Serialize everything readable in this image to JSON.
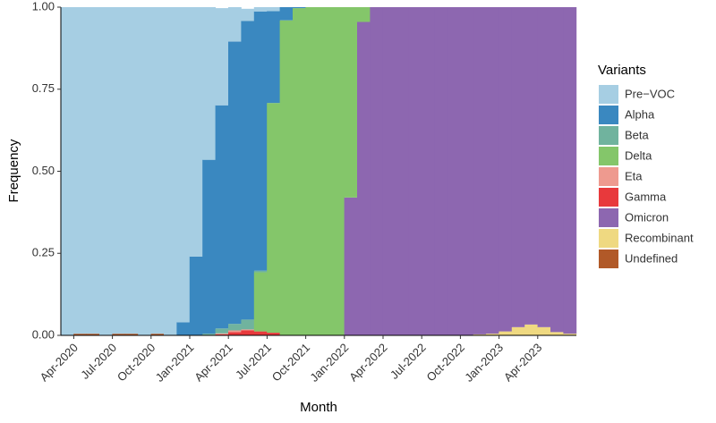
{
  "chart_data": {
    "type": "stacked_bar",
    "x_label": "Month",
    "y_label": "Frequency",
    "legend_title": "Variants",
    "categories": [
      null,
      "Apr-2020",
      null,
      null,
      "Jul-2020",
      null,
      null,
      "Oct-2020",
      null,
      null,
      "Jan-2021",
      null,
      null,
      "Apr-2021",
      null,
      null,
      "Jul-2021",
      null,
      null,
      "Oct-2021",
      null,
      null,
      "Jan-2022",
      null,
      null,
      "Apr-2022",
      null,
      null,
      "Jul-2022",
      null,
      null,
      "Oct-2022",
      null,
      null,
      "Jan-2023",
      null,
      null,
      "Apr-2023",
      null,
      null
    ],
    "ylim": [
      0,
      1
    ],
    "yticks": [
      {
        "value": 0,
        "label": "0.00"
      },
      {
        "value": 0.25,
        "label": "0.25"
      },
      {
        "value": 0.5,
        "label": "0.50"
      },
      {
        "value": 0.75,
        "label": "0.75"
      },
      {
        "value": 1,
        "label": "1.00"
      }
    ],
    "series": [
      {
        "name": "Pre−VOC",
        "color": "#a6cee3",
        "values": [
          1,
          0.995,
          0.995,
          1,
          0.995,
          0.995,
          1,
          0.995,
          1,
          0.96,
          0.76,
          0.465,
          0.296,
          0.105,
          0.037,
          0.013,
          0.012,
          0,
          0,
          0,
          0,
          0,
          0,
          0,
          0,
          0,
          0,
          0,
          0,
          0,
          0,
          0,
          0,
          0,
          0,
          0,
          0,
          0,
          0,
          0
        ]
      },
      {
        "name": "Alpha",
        "color": "#3a88c0",
        "values": [
          0,
          0,
          0,
          0,
          0,
          0,
          0,
          0,
          0,
          0.04,
          0.24,
          0.53,
          0.68,
          0.86,
          0.91,
          0.79,
          0.28,
          0.04,
          0.003,
          0,
          0,
          0,
          0,
          0,
          0,
          0,
          0,
          0,
          0,
          0,
          0,
          0,
          0,
          0,
          0,
          0,
          0,
          0,
          0,
          0
        ]
      },
      {
        "name": "Beta",
        "color": "#70b39e",
        "values": [
          0,
          0,
          0,
          0,
          0,
          0,
          0,
          0,
          0,
          0,
          0,
          0.005,
          0.015,
          0.02,
          0.03,
          0.005,
          0,
          0,
          0,
          0,
          0,
          0,
          0,
          0,
          0,
          0,
          0,
          0,
          0,
          0,
          0,
          0,
          0,
          0,
          0,
          0,
          0,
          0,
          0,
          0
        ]
      },
      {
        "name": "Delta",
        "color": "#84c66a",
        "values": [
          0,
          0,
          0,
          0,
          0,
          0,
          0,
          0,
          0,
          0,
          0,
          0,
          0,
          0,
          0,
          0.18,
          0.7,
          0.96,
          0.997,
          1,
          1,
          1,
          0.58,
          0.045,
          0,
          0,
          0,
          0,
          0,
          0,
          0,
          0,
          0,
          0,
          0,
          0,
          0,
          0,
          0,
          0
        ]
      },
      {
        "name": "Eta",
        "color": "#ee9a8f",
        "values": [
          0,
          0,
          0,
          0,
          0,
          0,
          0,
          0,
          0,
          0,
          0,
          0,
          0.003,
          0.005,
          0.003,
          0,
          0,
          0,
          0,
          0,
          0,
          0,
          0,
          0,
          0,
          0,
          0,
          0,
          0,
          0,
          0,
          0,
          0,
          0,
          0,
          0,
          0,
          0,
          0,
          0
        ]
      },
      {
        "name": "Gamma",
        "color": "#e8393c",
        "values": [
          0,
          0,
          0,
          0,
          0,
          0,
          0,
          0,
          0,
          0,
          0,
          0,
          0.003,
          0.01,
          0.015,
          0.012,
          0.008,
          0,
          0,
          0,
          0,
          0,
          0,
          0,
          0,
          0,
          0,
          0,
          0,
          0,
          0,
          0,
          0,
          0,
          0,
          0,
          0,
          0,
          0,
          0
        ]
      },
      {
        "name": "Omicron",
        "color": "#8d67b0",
        "values": [
          0,
          0,
          0,
          0,
          0,
          0,
          0,
          0,
          0,
          0,
          0,
          0,
          0,
          0,
          0,
          0,
          0,
          0,
          0,
          0,
          0,
          0,
          0.42,
          0.955,
          1,
          1,
          1,
          1,
          1,
          1,
          1,
          1,
          0.997,
          0.995,
          0.988,
          0.975,
          0.967,
          0.975,
          0.99,
          0.995
        ]
      },
      {
        "name": "Recombinant",
        "color": "#efd981",
        "values": [
          0,
          0,
          0,
          0,
          0,
          0,
          0,
          0,
          0,
          0,
          0,
          0,
          0,
          0,
          0,
          0,
          0,
          0,
          0,
          0,
          0,
          0,
          0,
          0,
          0,
          0,
          0,
          0,
          0,
          0,
          0,
          0,
          0.003,
          0.005,
          0.012,
          0.025,
          0.033,
          0.025,
          0.01,
          0.005
        ]
      },
      {
        "name": "Undefined",
        "color": "#b15928",
        "values": [
          0,
          0.005,
          0.005,
          0,
          0.005,
          0.005,
          0,
          0.005,
          0,
          0,
          0,
          0,
          0,
          0,
          0,
          0,
          0,
          0,
          0,
          0,
          0,
          0,
          0,
          0,
          0,
          0,
          0,
          0,
          0,
          0,
          0,
          0,
          0,
          0,
          0,
          0,
          0,
          0,
          0,
          0
        ]
      }
    ]
  }
}
